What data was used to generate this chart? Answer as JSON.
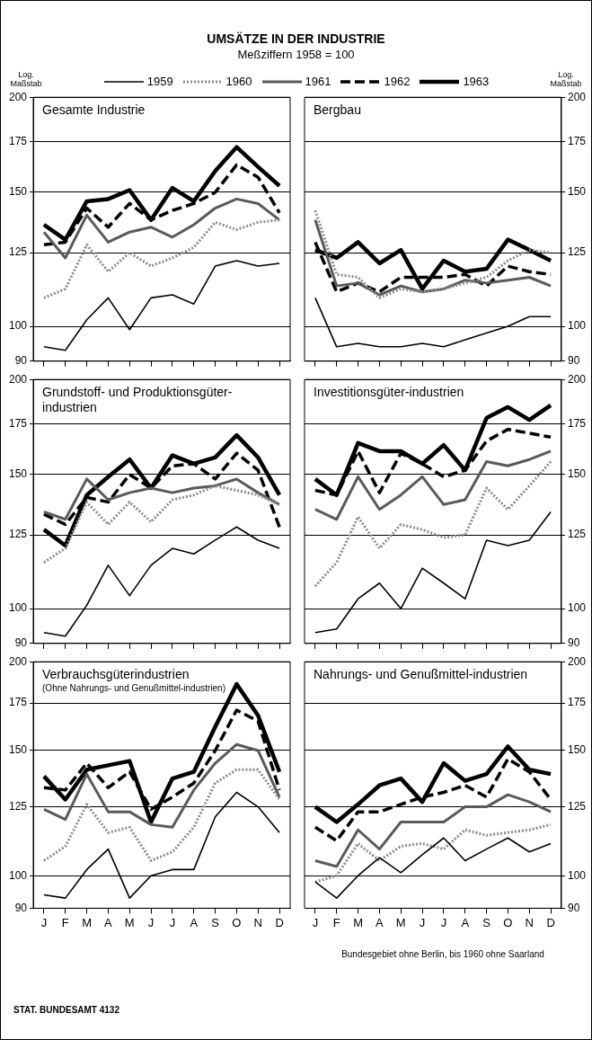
{
  "chart_data": [
    {
      "type": "other",
      "title": "UMSÄTZE IN DER INDUSTRIE",
      "subtitle": "Meßziffern 1958 = 100"
    },
    {
      "type": "line",
      "title": "Gesamte Industrie",
      "ylabel": "Log. Maßstab",
      "legend": "top",
      "log": true,
      "grid": "y",
      "marker": "none",
      "tick_labels": "y",
      "ylim": [
        90,
        200
      ],
      "yticks": [
        90,
        100,
        125,
        150,
        175,
        200
      ],
      "categories": [
        null,
        null,
        null,
        null,
        null,
        null,
        null,
        null,
        null,
        null,
        null,
        null
      ],
      "series": [
        {
          "name": "1959",
          "color": "#000000",
          "values": [
            94,
            93,
            102,
            109,
            99,
            109,
            110,
            107,
            120,
            122,
            120,
            121
          ]
        },
        {
          "name": "1960",
          "color": "#8c8c8c",
          "line_style": "dotted",
          "values": [
            109,
            112,
            128,
            118,
            125,
            120,
            123,
            127,
            137,
            134,
            137,
            138
          ]
        },
        {
          "name": "1961",
          "color": "#5a5a5a",
          "values": [
            133,
            123,
            140,
            129,
            133,
            135,
            131,
            136,
            143,
            147,
            145,
            138
          ]
        },
        {
          "name": "1962",
          "color": "#000000",
          "line_style": "dashed",
          "values": [
            128,
            129,
            143,
            135,
            145,
            138,
            142,
            145,
            150,
            163,
            157,
            141
          ]
        },
        {
          "name": "1963",
          "color": "#000000",
          "values": [
            136,
            130,
            146,
            147,
            151,
            138,
            152,
            146,
            160,
            172,
            162,
            153
          ]
        }
      ]
    },
    {
      "type": "line",
      "title": "Bergbau",
      "ylabel": "Log. Maßstab",
      "log": true,
      "grid": "y",
      "marker": "none",
      "tick_labels": "y",
      "ylim": [
        90,
        200
      ],
      "yticks": [
        90,
        100,
        125,
        150,
        175,
        200
      ],
      "categories": [
        null,
        null,
        null,
        null,
        null,
        null,
        null,
        null,
        null,
        null,
        null,
        null
      ],
      "series": [
        {
          "color": "#000000",
          "values": [
            109,
            94,
            95,
            94,
            94,
            95,
            94,
            96,
            98,
            100,
            103,
            103
          ]
        },
        {
          "color": "#8c8c8c",
          "line_style": "dotted",
          "values": [
            142,
            117,
            116,
            109,
            112,
            111,
            112,
            114,
            116,
            122,
            126,
            125
          ]
        },
        {
          "color": "#5a5a5a",
          "values": [
            138,
            113,
            114,
            110,
            113,
            111,
            112,
            115,
            114,
            115,
            116,
            113
          ]
        },
        {
          "color": "#000000",
          "line_style": "dashed",
          "values": [
            129,
            111,
            114,
            111,
            116,
            116,
            116,
            117,
            113,
            120,
            118,
            117
          ]
        },
        {
          "color": "#000000",
          "values": [
            126,
            123,
            129,
            121,
            126,
            112,
            122,
            118,
            119,
            130,
            126,
            122
          ]
        }
      ]
    },
    {
      "type": "line",
      "title": "Grundstoff- und Produktionsgüter-industrien",
      "log": true,
      "grid": "y",
      "marker": "none",
      "tick_labels": "y",
      "ylim": [
        90,
        200
      ],
      "yticks": [
        90,
        100,
        125,
        150,
        175,
        200
      ],
      "categories": [
        null,
        null,
        null,
        null,
        null,
        null,
        null,
        null,
        null,
        null,
        null,
        null
      ],
      "series": [
        {
          "color": "#000000",
          "values": [
            93,
            92,
            101,
            114,
            104,
            114,
            120,
            118,
            123,
            128,
            123,
            120
          ]
        },
        {
          "color": "#8c8c8c",
          "line_style": "dotted",
          "values": [
            115,
            120,
            138,
            129,
            138,
            130,
            139,
            141,
            145,
            143,
            141,
            137
          ]
        },
        {
          "color": "#5a5a5a",
          "values": [
            134,
            131,
            148,
            139,
            142,
            144,
            142,
            144,
            145,
            148,
            142,
            137
          ]
        },
        {
          "color": "#000000",
          "line_style": "dashed",
          "values": [
            133,
            129,
            140,
            138,
            150,
            144,
            154,
            155,
            148,
            160,
            152,
            128
          ]
        },
        {
          "color": "#000000",
          "values": [
            127,
            121,
            141,
            149,
            157,
            144,
            159,
            155,
            158,
            169,
            158,
            141
          ]
        }
      ]
    },
    {
      "type": "line",
      "title": "Investitionsgüter-industrien",
      "log": true,
      "grid": "y",
      "marker": "none",
      "tick_labels": "y",
      "ylim": [
        90,
        200
      ],
      "yticks": [
        90,
        100,
        125,
        150,
        175,
        200
      ],
      "categories": [
        null,
        null,
        null,
        null,
        null,
        null,
        null,
        null,
        null,
        null,
        null,
        null
      ],
      "series": [
        {
          "color": "#000000",
          "values": [
            93,
            94,
            103,
            108,
            100,
            113,
            108,
            103,
            123,
            121,
            123,
            134
          ]
        },
        {
          "color": "#8c8c8c",
          "line_style": "dotted",
          "values": [
            107,
            115,
            132,
            120,
            129,
            127,
            124,
            125,
            144,
            135,
            145,
            156
          ]
        },
        {
          "color": "#5a5a5a",
          "values": [
            135,
            131,
            149,
            135,
            141,
            149,
            137,
            139,
            156,
            154,
            157,
            161
          ]
        },
        {
          "color": "#000000",
          "line_style": "dashed",
          "values": [
            143,
            141,
            161,
            142,
            160,
            155,
            149,
            152,
            166,
            172,
            170,
            168
          ]
        },
        {
          "color": "#000000",
          "values": [
            148,
            141,
            165,
            161,
            161,
            155,
            164,
            152,
            178,
            184,
            177,
            185
          ]
        }
      ]
    },
    {
      "type": "line",
      "title": "Verbrauchsgüterindustrien",
      "subtitle": "(Ohne Nahrungs- und Genußmittel-industrien)",
      "log": true,
      "grid": "y",
      "marker": "none",
      "ylim": [
        90,
        200
      ],
      "yticks": [
        90,
        100,
        125,
        150,
        175,
        200
      ],
      "categories": [
        "J",
        "F",
        "M",
        "A",
        "M",
        "J",
        "J",
        "A",
        "S",
        "O",
        "N",
        "D"
      ],
      "annotations": [
        "STAT. BUNDESAMT 4132"
      ],
      "series": [
        {
          "color": "#000000",
          "values": [
            94,
            93,
            102,
            109,
            93,
            100,
            102,
            102,
            121,
            131,
            125,
            115
          ]
        },
        {
          "color": "#8c8c8c",
          "line_style": "dotted",
          "values": [
            105,
            110,
            126,
            115,
            117,
            105,
            108,
            117,
            135,
            141,
            141,
            128
          ]
        },
        {
          "color": "#5a5a5a",
          "values": [
            124,
            120,
            139,
            123,
            123,
            118,
            117,
            132,
            144,
            153,
            150,
            129
          ]
        },
        {
          "color": "#000000",
          "line_style": "dashed",
          "values": [
            133,
            132,
            144,
            133,
            140,
            124,
            129,
            135,
            150,
            171,
            165,
            132
          ]
        },
        {
          "color": "#000000",
          "values": [
            138,
            128,
            141,
            143,
            145,
            119,
            137,
            140,
            162,
            186,
            168,
            140
          ]
        }
      ]
    },
    {
      "type": "line",
      "title": "Nahrungs- und Genußmittel-industrien",
      "log": true,
      "grid": "y",
      "marker": "none",
      "ylim": [
        90,
        200
      ],
      "yticks": [
        90,
        100,
        125,
        150,
        175,
        200
      ],
      "categories": [
        "J",
        "F",
        "M",
        "A",
        "M",
        "J",
        "J",
        "A",
        "S",
        "O",
        "N",
        "D"
      ],
      "annotations": [
        "Bundesgebiet ohne Berlin, bis 1960 ohne Saarland"
      ],
      "series": [
        {
          "color": "#000000",
          "values": [
            98,
            93,
            100,
            106,
            101,
            107,
            113,
            105,
            109,
            113,
            108,
            111
          ]
        },
        {
          "color": "#8c8c8c",
          "line_style": "dotted",
          "values": [
            98,
            100,
            111,
            105,
            110,
            111,
            109,
            116,
            114,
            115,
            116,
            118
          ]
        },
        {
          "color": "#5a5a5a",
          "values": [
            105,
            103,
            116,
            109,
            119,
            119,
            119,
            125,
            125,
            130,
            127,
            123
          ]
        },
        {
          "color": "#000000",
          "line_style": "dashed",
          "values": [
            117,
            112,
            123,
            123,
            126,
            129,
            131,
            134,
            129,
            146,
            140,
            128
          ]
        },
        {
          "color": "#000000",
          "values": [
            125,
            119,
            126,
            134,
            137,
            127,
            144,
            136,
            139,
            152,
            141,
            139
          ]
        }
      ]
    }
  ]
}
